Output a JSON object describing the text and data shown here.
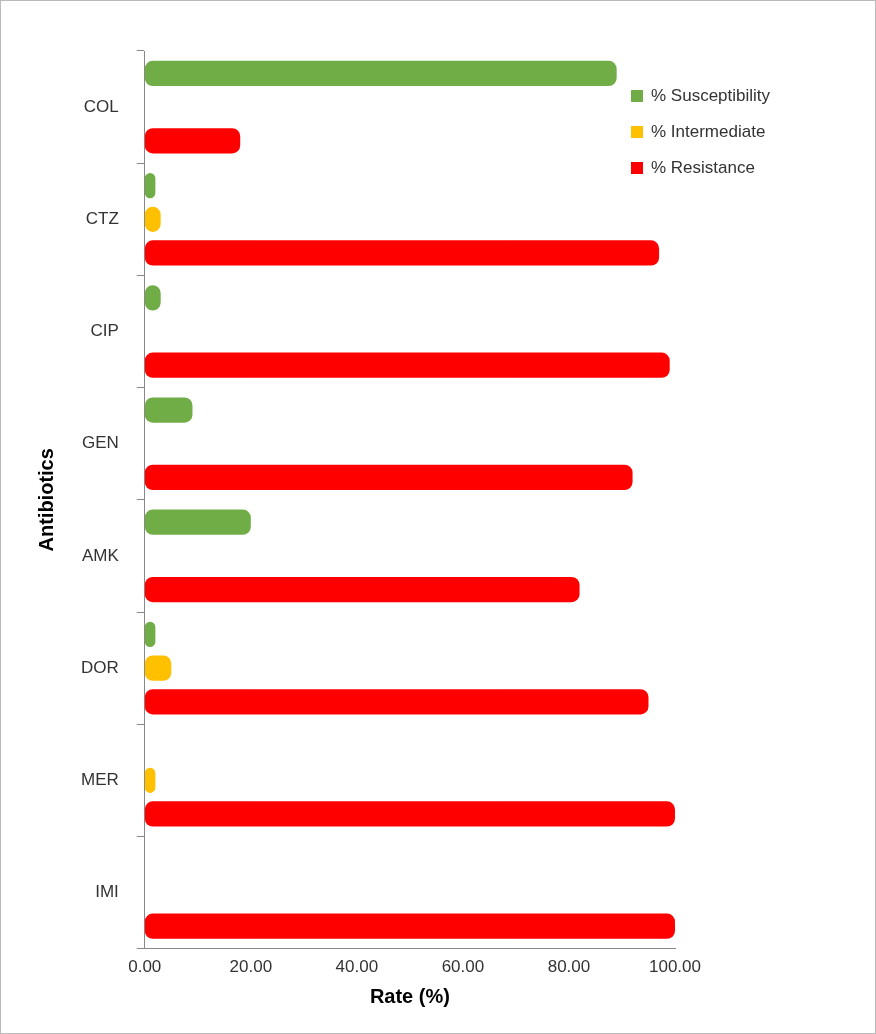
{
  "chart_data": {
    "type": "bar",
    "orientation": "horizontal",
    "xlabel": "Rate (%)",
    "ylabel": "Antibiotics",
    "categories": [
      "COL",
      "CTZ",
      "CIP",
      "GEN",
      "AMK",
      "DOR",
      "MER",
      "IMI"
    ],
    "series": [
      {
        "name": "% Susceptibility",
        "color": "#70ad47",
        "values": [
          89,
          2,
          3,
          9,
          20,
          2,
          null,
          null
        ]
      },
      {
        "name": "% Intermediate",
        "color": "#ffc000",
        "values": [
          null,
          3,
          null,
          null,
          null,
          5,
          2,
          null
        ]
      },
      {
        "name": "% Resistance",
        "color": "#ff0000",
        "values": [
          18,
          97,
          99,
          92,
          82,
          95,
          100,
          100
        ]
      }
    ],
    "xlim": [
      0,
      100
    ],
    "xticks": [
      {
        "value": 0,
        "label": "0.00"
      },
      {
        "value": 20,
        "label": "20.00"
      },
      {
        "value": 40,
        "label": "40.00"
      },
      {
        "value": 60,
        "label": "60.00"
      },
      {
        "value": 80,
        "label": "80.00"
      },
      {
        "value": 100,
        "label": "100.00"
      }
    ],
    "grid": false,
    "legend": "top right"
  }
}
